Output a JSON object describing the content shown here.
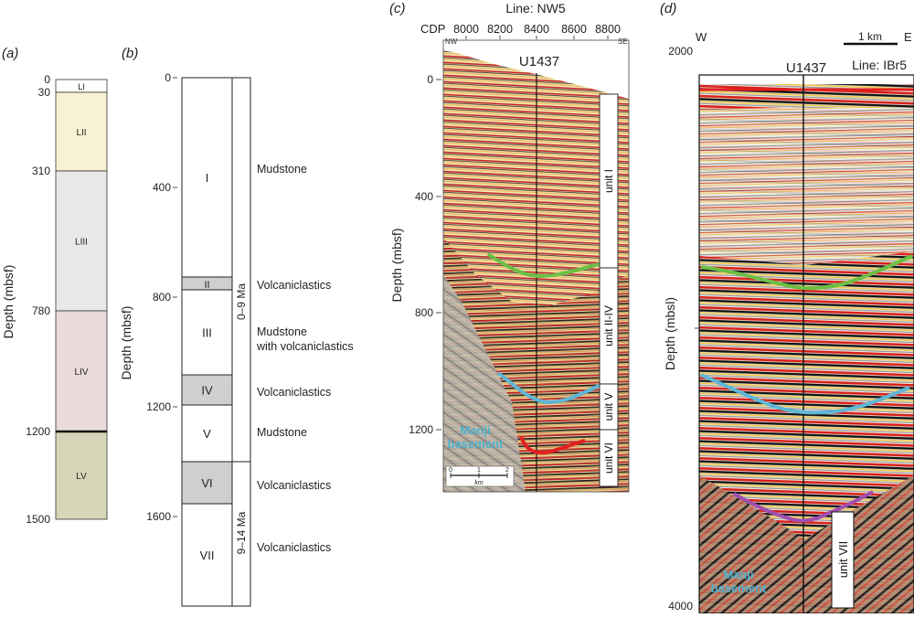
{
  "panel_a": {
    "label": "(a)",
    "axis_label": "Depth (mbsf)",
    "ticks": [
      "0",
      "30",
      "310",
      "780",
      "1200",
      "1500"
    ],
    "units": [
      {
        "name": "LI",
        "color": "#ffffff"
      },
      {
        "name": "LII",
        "color": "#f7f2d3"
      },
      {
        "name": "LIII",
        "color": "#e8e8e8"
      },
      {
        "name": "LIV",
        "color": "#eadada"
      },
      {
        "name": "LV",
        "color": "#d8d6b8"
      }
    ]
  },
  "panel_b": {
    "label": "(b)",
    "axis_label": "Depth (mbsf)",
    "ticks": [
      "0",
      "400",
      "800",
      "1200",
      "1600"
    ],
    "units": [
      {
        "name": "I",
        "lithology": "Mudstone",
        "shaded": false
      },
      {
        "name": "II",
        "lithology": "Volcaniclastics",
        "shaded": true
      },
      {
        "name": "III",
        "lithology": "Mudstone",
        "lithology_line2": "with volcaniclastics",
        "shaded": false
      },
      {
        "name": "IV",
        "lithology": "Volcaniclastics",
        "shaded": true
      },
      {
        "name": "V",
        "lithology": "Mudstone",
        "shaded": false
      },
      {
        "name": "VI",
        "lithology": "Volcaniclastics",
        "shaded": true
      },
      {
        "name": "VII",
        "lithology": "Volcaniclastics",
        "shaded": false
      }
    ],
    "age_upper": "0–9 Ma",
    "age_lower": "9–14 Ma",
    "shade_color": "#cfcfcf"
  },
  "panel_c": {
    "label": "(c)",
    "title": "Line: NW5",
    "cdp_label": "CDP",
    "cdp_ticks": [
      "8000",
      "8200",
      "8400",
      "8600",
      "8800"
    ],
    "nw": "NW",
    "se": "SE",
    "site": "U1437",
    "axis_label": "Depth (mbsf)",
    "ticks": [
      "0",
      "400",
      "800",
      "1200"
    ],
    "units": [
      "unit I",
      "unit II-IV",
      "unit V",
      "unit VI"
    ],
    "basement": "Manji basement",
    "scale_ticks": [
      "0",
      "1",
      "2"
    ],
    "scale_unit": "km"
  },
  "panel_d": {
    "label": "(d)",
    "title": "Line: IBr5",
    "west": "W",
    "east": "E",
    "scale": "1 km",
    "site": "U1437",
    "axis_label": "Depth (mbsl)",
    "ticks": [
      "2000",
      "4000"
    ],
    "unit": "unit VII",
    "basement": "Manji basement"
  },
  "colors": {
    "green_horizon": "#6cbf45",
    "blue_horizon": "#5fb6d6",
    "red_horizon": "#e02020",
    "purple_horizon": "#a04fb0",
    "basement_text": "#4fb0cf"
  }
}
